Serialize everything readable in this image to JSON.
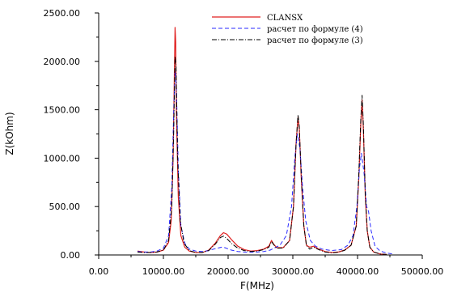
{
  "chart_data": {
    "type": "line",
    "title": "",
    "xlabel": "F(MHz)",
    "ylabel": "Z(kOhm)",
    "xlim": [
      0,
      50000
    ],
    "ylim": [
      0,
      2500
    ],
    "xticks": [
      {
        "value": 0,
        "label": "0.00"
      },
      {
        "value": 10000,
        "label": "10000.00"
      },
      {
        "value": 20000,
        "label": "20000.00"
      },
      {
        "value": 30000,
        "label": "30000.00"
      },
      {
        "value": 40000,
        "label": "40000.00"
      },
      {
        "value": 50000,
        "label": "50000.00"
      }
    ],
    "yticks": [
      {
        "value": 0,
        "label": "0.00"
      },
      {
        "value": 500,
        "label": "500.00"
      },
      {
        "value": 1000,
        "label": "1000.00"
      },
      {
        "value": 1500,
        "label": "1500.00"
      },
      {
        "value": 2000,
        "label": "2000.00"
      },
      {
        "value": 2500,
        "label": "2500.00"
      }
    ],
    "grid": false,
    "legend_position": "top-right",
    "series": [
      {
        "name": "CLANSX",
        "color": "#e02020",
        "dash": "solid",
        "points": [
          [
            6000,
            40
          ],
          [
            7000,
            30
          ],
          [
            8000,
            25
          ],
          [
            9000,
            30
          ],
          [
            10000,
            50
          ],
          [
            10800,
            130
          ],
          [
            11200,
            350
          ],
          [
            11500,
            1000
          ],
          [
            11700,
            1900
          ],
          [
            11800,
            2350
          ],
          [
            11900,
            2200
          ],
          [
            12000,
            1500
          ],
          [
            12300,
            600
          ],
          [
            12700,
            200
          ],
          [
            13300,
            80
          ],
          [
            14000,
            40
          ],
          [
            15000,
            25
          ],
          [
            16000,
            25
          ],
          [
            17000,
            50
          ],
          [
            18000,
            120
          ],
          [
            18800,
            200
          ],
          [
            19300,
            230
          ],
          [
            19800,
            215
          ],
          [
            20500,
            160
          ],
          [
            21500,
            90
          ],
          [
            22500,
            55
          ],
          [
            23500,
            40
          ],
          [
            24500,
            45
          ],
          [
            25500,
            60
          ],
          [
            26300,
            90
          ],
          [
            26700,
            150
          ],
          [
            27000,
            115
          ],
          [
            27500,
            75
          ],
          [
            28500,
            75
          ],
          [
            29500,
            150
          ],
          [
            30100,
            500
          ],
          [
            30500,
            1150
          ],
          [
            30800,
            1420
          ],
          [
            31000,
            1300
          ],
          [
            31300,
            800
          ],
          [
            31700,
            300
          ],
          [
            32100,
            100
          ],
          [
            32600,
            80
          ],
          [
            33200,
            90
          ],
          [
            34000,
            60
          ],
          [
            35000,
            35
          ],
          [
            36000,
            25
          ],
          [
            37000,
            30
          ],
          [
            38000,
            50
          ],
          [
            39000,
            100
          ],
          [
            39800,
            300
          ],
          [
            40200,
            800
          ],
          [
            40500,
            1350
          ],
          [
            40700,
            1600
          ],
          [
            40900,
            1300
          ],
          [
            41200,
            600
          ],
          [
            41500,
            250
          ],
          [
            41900,
            80
          ],
          [
            42500,
            30
          ],
          [
            43500,
            10
          ],
          [
            44500,
            5
          ]
        ]
      },
      {
        "name": "расчет по формуле (4)",
        "color": "#2a2aff",
        "dash": "dashed",
        "points": [
          [
            6000,
            35
          ],
          [
            7000,
            30
          ],
          [
            8000,
            30
          ],
          [
            9000,
            40
          ],
          [
            10000,
            70
          ],
          [
            10800,
            200
          ],
          [
            11300,
            700
          ],
          [
            11600,
            1500
          ],
          [
            11800,
            1900
          ],
          [
            12000,
            1750
          ],
          [
            12300,
            900
          ],
          [
            12700,
            300
          ],
          [
            13300,
            120
          ],
          [
            14000,
            60
          ],
          [
            15000,
            40
          ],
          [
            16000,
            35
          ],
          [
            17000,
            45
          ],
          [
            18000,
            65
          ],
          [
            19000,
            80
          ],
          [
            19500,
            75
          ],
          [
            20500,
            50
          ],
          [
            21500,
            35
          ],
          [
            22500,
            30
          ],
          [
            24000,
            28
          ],
          [
            25500,
            35
          ],
          [
            26500,
            50
          ],
          [
            28000,
            100
          ],
          [
            29000,
            200
          ],
          [
            29800,
            500
          ],
          [
            30300,
            1000
          ],
          [
            30700,
            1250
          ],
          [
            31100,
            1100
          ],
          [
            31500,
            700
          ],
          [
            32000,
            350
          ],
          [
            32700,
            150
          ],
          [
            33500,
            90
          ],
          [
            34500,
            60
          ],
          [
            36000,
            45
          ],
          [
            37500,
            55
          ],
          [
            38500,
            100
          ],
          [
            39300,
            200
          ],
          [
            39900,
            500
          ],
          [
            40300,
            900
          ],
          [
            40600,
            1050
          ],
          [
            41000,
            850
          ],
          [
            41400,
            500
          ],
          [
            41700,
            450
          ],
          [
            42100,
            250
          ],
          [
            42700,
            90
          ],
          [
            43500,
            40
          ],
          [
            44500,
            20
          ],
          [
            45500,
            10
          ]
        ]
      },
      {
        "name": "расчет по формуле (3)",
        "color": "#000000",
        "dash": "dashdot",
        "points": [
          [
            6000,
            30
          ],
          [
            7000,
            25
          ],
          [
            8000,
            25
          ],
          [
            9000,
            30
          ],
          [
            10000,
            50
          ],
          [
            10800,
            150
          ],
          [
            11300,
            500
          ],
          [
            11600,
            1300
          ],
          [
            11800,
            2050
          ],
          [
            11950,
            1950
          ],
          [
            12200,
            1000
          ],
          [
            12600,
            350
          ],
          [
            13200,
            120
          ],
          [
            14000,
            45
          ],
          [
            15000,
            25
          ],
          [
            16000,
            25
          ],
          [
            17000,
            45
          ],
          [
            18000,
            110
          ],
          [
            18800,
            180
          ],
          [
            19300,
            195
          ],
          [
            19800,
            170
          ],
          [
            20500,
            120
          ],
          [
            21500,
            70
          ],
          [
            22500,
            45
          ],
          [
            23500,
            35
          ],
          [
            24500,
            40
          ],
          [
            25500,
            55
          ],
          [
            26300,
            80
          ],
          [
            26700,
            140
          ],
          [
            27000,
            110
          ],
          [
            27500,
            70
          ],
          [
            28500,
            72
          ],
          [
            29500,
            150
          ],
          [
            30100,
            500
          ],
          [
            30500,
            1150
          ],
          [
            30800,
            1450
          ],
          [
            31000,
            1320
          ],
          [
            31300,
            820
          ],
          [
            31700,
            300
          ],
          [
            32100,
            100
          ],
          [
            32600,
            60
          ],
          [
            33200,
            80
          ],
          [
            34000,
            55
          ],
          [
            35000,
            30
          ],
          [
            36000,
            22
          ],
          [
            37000,
            28
          ],
          [
            38000,
            48
          ],
          [
            39000,
            100
          ],
          [
            39800,
            300
          ],
          [
            40200,
            850
          ],
          [
            40500,
            1400
          ],
          [
            40700,
            1650
          ],
          [
            40900,
            1350
          ],
          [
            41200,
            620
          ],
          [
            41500,
            250
          ],
          [
            41900,
            80
          ],
          [
            42500,
            30
          ],
          [
            43500,
            10
          ],
          [
            44500,
            5
          ]
        ]
      }
    ]
  }
}
